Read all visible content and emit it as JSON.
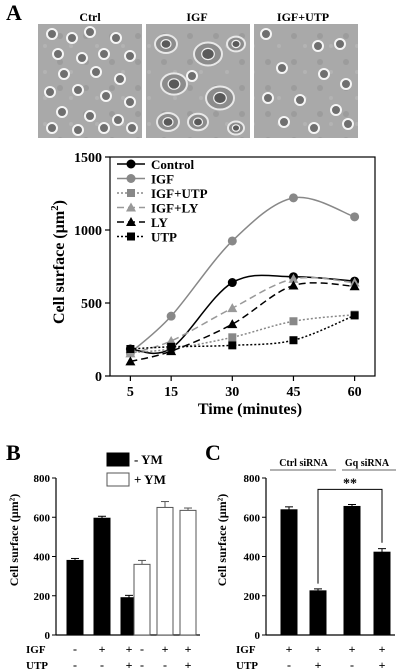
{
  "panels": {
    "A": {
      "letter": "A",
      "images": [
        {
          "label": "Ctrl"
        },
        {
          "label": "IGF"
        },
        {
          "label": "IGF+UTP"
        }
      ],
      "chart_data": {
        "type": "line",
        "xlabel": "Time (minutes)",
        "ylabel_main": "Cell surface (",
        "ylabel_unit": "µm",
        "ylabel_sup": "2",
        "ylabel_close": ")",
        "x": [
          5,
          15,
          30,
          45,
          60
        ],
        "xticks": [
          "5",
          "15",
          "30",
          "45",
          "60"
        ],
        "yticks": [
          "0",
          "500",
          "1000",
          "1500"
        ],
        "xlim": [
          0,
          65
        ],
        "ylim": [
          0,
          1500
        ],
        "legend_position": "top-left",
        "series": [
          {
            "name": "Control",
            "values": [
              185,
              190,
              640,
              680,
              650
            ],
            "color": "#000000",
            "dash": "solid",
            "marker": "circle"
          },
          {
            "name": "IGF",
            "values": [
              160,
              410,
              925,
              1220,
              1090
            ],
            "color": "#888888",
            "dash": "solid",
            "marker": "circle"
          },
          {
            "name": "IGF+UTP",
            "values": [
              160,
              185,
              265,
              375,
              420
            ],
            "color": "#888888",
            "dash": "dotted",
            "marker": "square"
          },
          {
            "name": "IGF+LY",
            "values": [
              155,
              240,
              465,
              665,
              640
            ],
            "color": "#999999",
            "dash": "dashed",
            "marker": "triangle"
          },
          {
            "name": "LY",
            "values": [
              100,
              170,
              355,
              620,
              615
            ],
            "color": "#000000",
            "dash": "dashed",
            "marker": "triangle"
          },
          {
            "name": "UTP",
            "values": [
              185,
              200,
              210,
              245,
              415
            ],
            "color": "#000000",
            "dash": "dotted",
            "marker": "square"
          }
        ]
      }
    },
    "B": {
      "letter": "B",
      "chart_data": {
        "type": "bar",
        "ylabel": "Cell surface (µm²)",
        "ylim": [
          0,
          800
        ],
        "yticks": [
          "0",
          "200",
          "400",
          "600",
          "800"
        ],
        "legend": [
          {
            "name": "- YM",
            "color": "#000000"
          },
          {
            "name": "+ YM",
            "color": "#ffffff"
          }
        ],
        "row_labels": [
          "IGF",
          "UTP"
        ],
        "groups": [
          {
            "name": "- YM",
            "values": [
              380,
              595,
              190
            ],
            "errors": [
              10,
              10,
              12
            ],
            "igf": [
              "-",
              "+",
              "+"
            ],
            "utp": [
              "-",
              "-",
              "+"
            ]
          },
          {
            "name": "+ YM",
            "values": [
              360,
              650,
              635
            ],
            "errors": [
              20,
              30,
              12
            ],
            "igf": [
              "-",
              "+",
              "+"
            ],
            "utp": [
              "-",
              "-",
              "+"
            ]
          }
        ]
      }
    },
    "C": {
      "letter": "C",
      "chart_data": {
        "type": "bar",
        "ylabel": "Cell surface (µm²)",
        "ylim": [
          0,
          800
        ],
        "yticks": [
          "0",
          "200",
          "400",
          "600",
          "800"
        ],
        "row_labels": [
          "IGF",
          "UTP"
        ],
        "groups": [
          {
            "name": "Ctrl siRNA",
            "values": [
              638,
              225
            ],
            "errors": [
              15,
              10
            ],
            "igf": [
              "+",
              "+"
            ],
            "utp": [
              "-",
              "+"
            ]
          },
          {
            "name": "Gq siRNA",
            "values": [
              655,
              422
            ],
            "errors": [
              10,
              18
            ],
            "igf": [
              "+",
              "+"
            ],
            "utp": [
              "-",
              "+"
            ]
          }
        ],
        "significance": "**"
      }
    }
  }
}
